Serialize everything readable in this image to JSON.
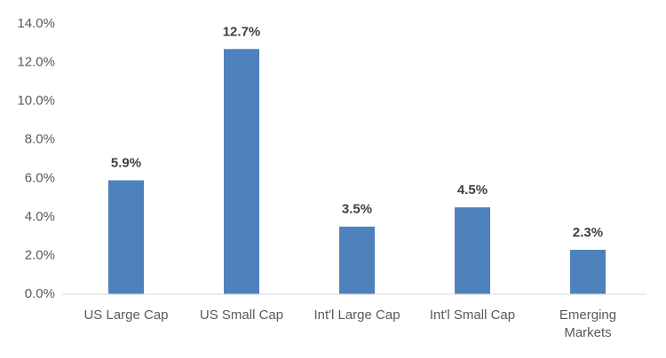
{
  "chart_data": {
    "type": "bar",
    "categories": [
      "US Large Cap",
      "US Small Cap",
      "Int'l Large Cap",
      "Int'l Small Cap",
      "Emerging Markets"
    ],
    "values": [
      5.9,
      12.7,
      3.5,
      4.5,
      2.3
    ],
    "value_labels": [
      "5.9%",
      "12.7%",
      "3.5%",
      "4.5%",
      "2.3%"
    ],
    "color": "#4f81bd",
    "ylim": [
      0,
      14
    ],
    "yticks": [
      {
        "value": 0,
        "label": "0.0%"
      },
      {
        "value": 2,
        "label": "2.0%"
      },
      {
        "value": 4,
        "label": "4.0%"
      },
      {
        "value": 6,
        "label": "6.0%"
      },
      {
        "value": 8,
        "label": "8.0%"
      },
      {
        "value": 10,
        "label": "10.0%"
      },
      {
        "value": 12,
        "label": "12.0%"
      },
      {
        "value": 14,
        "label": "14.0%"
      }
    ],
    "grid": false
  }
}
